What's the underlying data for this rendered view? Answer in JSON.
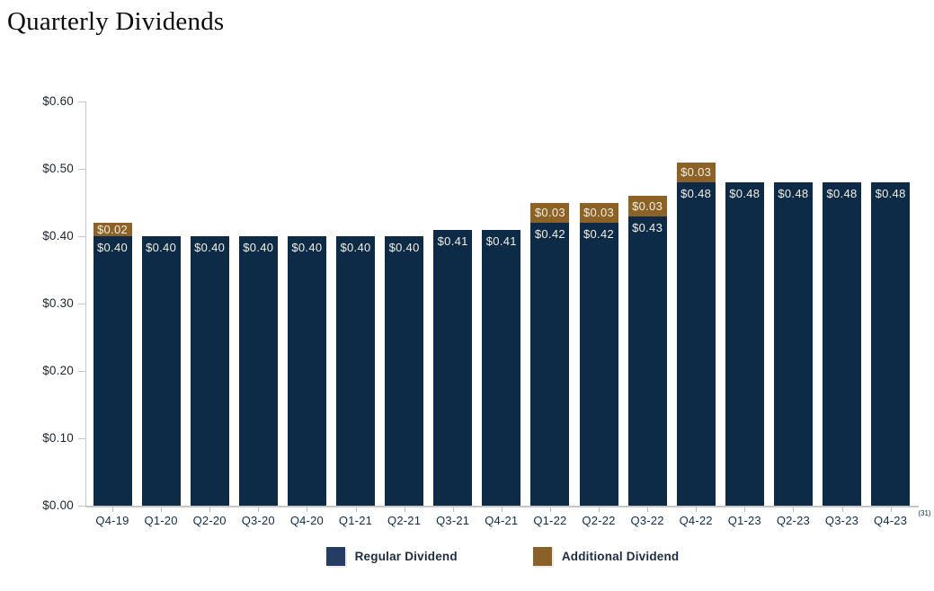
{
  "page_title": "Quarterly Dividends",
  "chart_data": {
    "type": "bar",
    "stacked": true,
    "title": "Quarterly Dividends",
    "categories": [
      "Q4-19",
      "Q1-20",
      "Q2-20",
      "Q3-20",
      "Q4-20",
      "Q1-21",
      "Q2-21",
      "Q3-21",
      "Q4-21",
      "Q1-22",
      "Q2-22",
      "Q3-22",
      "Q4-22",
      "Q1-23",
      "Q2-23",
      "Q3-23",
      "Q4-23"
    ],
    "series": [
      {
        "name": "Regular Dividend",
        "color": "#0d2b47",
        "values": [
          0.4,
          0.4,
          0.4,
          0.4,
          0.4,
          0.4,
          0.4,
          0.41,
          0.41,
          0.42,
          0.42,
          0.43,
          0.48,
          0.48,
          0.48,
          0.48,
          0.48
        ]
      },
      {
        "name": "Additional Dividend",
        "color": "#8c6227",
        "values": [
          0.02,
          0,
          0,
          0,
          0,
          0,
          0,
          0,
          0,
          0.03,
          0.03,
          0.03,
          0.03,
          0,
          0,
          0,
          0
        ]
      }
    ],
    "value_label_prefix": "$",
    "y_ticks": [
      "$0.60",
      "$0.50",
      "$0.40",
      "$0.30",
      "$0.20",
      "$0.10",
      "$0.00"
    ],
    "ylim": [
      0,
      0.6
    ],
    "xlabel": "",
    "ylabel": "",
    "grid": false,
    "legend_position": "bottom",
    "footnote_marker": "(31)"
  },
  "legend": {
    "items": [
      {
        "label": "Regular Dividend",
        "color": "#263d63"
      },
      {
        "label": "Additional Dividend",
        "color": "#8a6127"
      }
    ]
  }
}
